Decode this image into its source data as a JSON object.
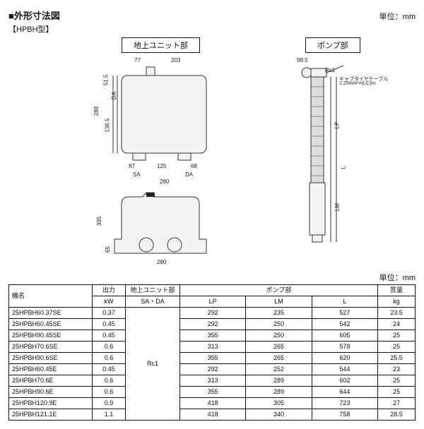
{
  "header": {
    "title": "■外形寸法図",
    "unit_label": "単位：mm",
    "model_label": "【HPBH型】",
    "section_ground": "地上ユニット部",
    "section_pump": "ポンプ部",
    "cable_label": "キャブタイヤケーブル",
    "cable_spec": "1.25mm²×(LC)m",
    "rc_label": "Rc1"
  },
  "dims": {
    "top_77": "77",
    "top_203": "203",
    "left_51_5": "51.5",
    "left_136_5": "136.5",
    "left_288": "288",
    "bot_87": "87",
    "bot_125": "125",
    "bot_68": "68",
    "bot_SA": "SA",
    "bot_DA": "DA",
    "bot_280": "280",
    "side_DA": "DA",
    "lower_335": "335",
    "lower_65": "65",
    "lower_280": "280",
    "pump_98_5": "98.5",
    "pump_LP": "LP",
    "pump_LM": "LM",
    "pump_L": "L"
  },
  "table": {
    "unit_label": "単位：mm",
    "head_model": "機名",
    "head_kw": "出力",
    "head_kw_sub": "kW",
    "head_ground": "地上ユニット部",
    "head_sa_da": "SA・DA",
    "head_pump": "ポンプ部",
    "head_lp": "LP",
    "head_lm": "LM",
    "head_l": "L",
    "head_mass": "質量",
    "head_mass_sub": "kg",
    "sa_da_value": "Rc1",
    "rows": [
      {
        "model": "25HPBH60.37SE",
        "kw": "0.37",
        "lp": "292",
        "lm": "235",
        "l": "527",
        "kg": "23.5"
      },
      {
        "model": "25HPBH60.45SE",
        "kw": "0.45",
        "lp": "292",
        "lm": "250",
        "l": "542",
        "kg": "24"
      },
      {
        "model": "25HPBH90.45SE",
        "kw": "0.45",
        "lp": "355",
        "lm": "250",
        "l": "605",
        "kg": "25"
      },
      {
        "model": "25HPBH70.6SE",
        "kw": "0.6",
        "lp": "313",
        "lm": "265",
        "l": "578",
        "kg": "25"
      },
      {
        "model": "25HPBH90.6SE",
        "kw": "0.6",
        "lp": "355",
        "lm": "265",
        "l": "620",
        "kg": "25.5"
      },
      {
        "model": "25HPBH60.45E",
        "kw": "0.45",
        "lp": "292",
        "lm": "252",
        "l": "544",
        "kg": "23"
      },
      {
        "model": "25HPBH70.6E",
        "kw": "0.6",
        "lp": "313",
        "lm": "289",
        "l": "602",
        "kg": "25"
      },
      {
        "model": "25HPBH90.6E",
        "kw": "0.6",
        "lp": "355",
        "lm": "289",
        "l": "644",
        "kg": "25"
      },
      {
        "model": "25HPBH120.9E",
        "kw": "0.9",
        "lp": "418",
        "lm": "305",
        "l": "723",
        "kg": "27"
      },
      {
        "model": "25HPBH121.1E",
        "kw": "1.1",
        "lp": "418",
        "lm": "340",
        "l": "758",
        "kg": "28.5"
      }
    ]
  },
  "style": {
    "text_color": "#111111",
    "border_color": "#111111",
    "bg_color": "#ffffff"
  }
}
